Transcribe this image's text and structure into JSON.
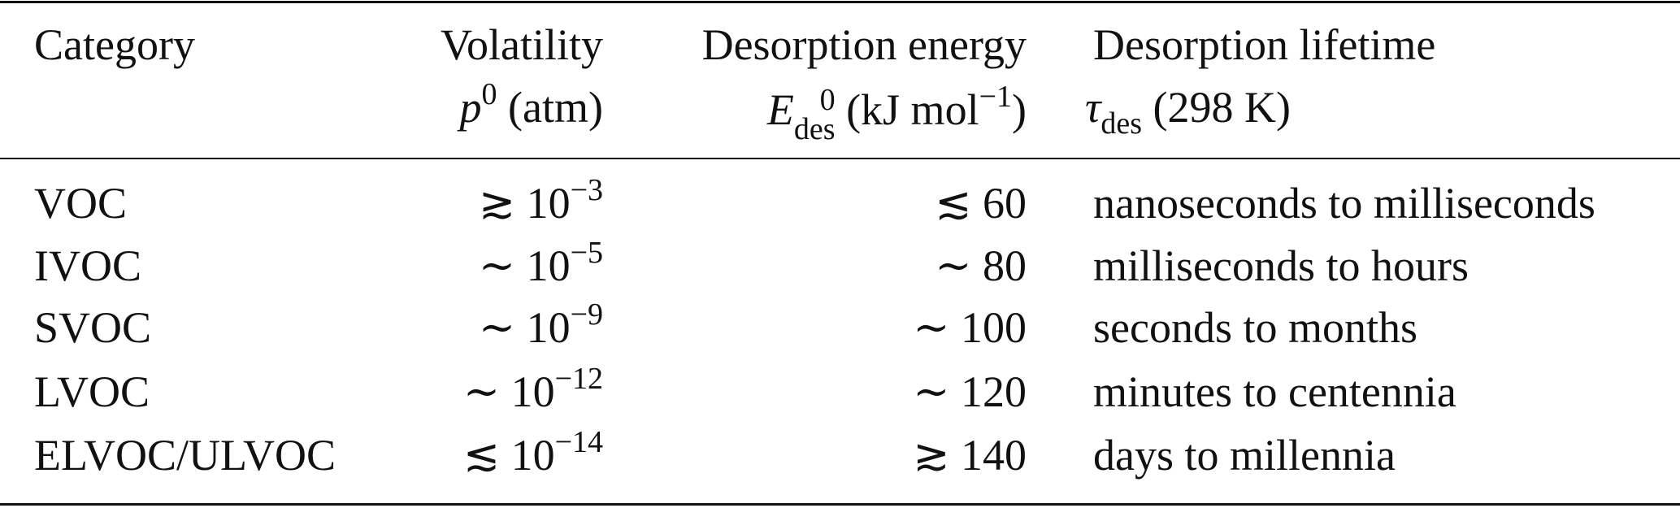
{
  "table": {
    "header": {
      "category": "Category",
      "volatility": {
        "title": "Volatility",
        "symbol": "p",
        "superscript": "0",
        "unit": "(atm)"
      },
      "energy": {
        "title": "Desorption energy",
        "symbol": "E",
        "superscript": "0",
        "subscript": "des",
        "unit": "(kJ mol",
        "unit_exponent": "−1",
        "unit_close": ")"
      },
      "lifetime": {
        "title": "Desorption lifetime",
        "symbol": "τ",
        "subscript": "des",
        "unit": "(298 K)"
      }
    },
    "rows": [
      {
        "category": "VOC",
        "volatility": {
          "relation": "≳",
          "base": "10",
          "exponent": "−3"
        },
        "energy": {
          "relation": "≲",
          "value": 60
        },
        "lifetime": "nanoseconds to milliseconds"
      },
      {
        "category": "IVOC",
        "volatility": {
          "relation": "∼",
          "base": "10",
          "exponent": "−5"
        },
        "energy": {
          "relation": "∼",
          "value": 80
        },
        "lifetime": "milliseconds to hours"
      },
      {
        "category": "SVOC",
        "volatility": {
          "relation": "∼",
          "base": "10",
          "exponent": "−9"
        },
        "energy": {
          "relation": "∼",
          "value": 100
        },
        "lifetime": "seconds to months"
      },
      {
        "category": "LVOC",
        "volatility": {
          "relation": "∼",
          "base": "10",
          "exponent": "−12"
        },
        "energy": {
          "relation": "∼",
          "value": 120
        },
        "lifetime": "minutes to centennia"
      },
      {
        "category": "ELVOC/ULVOC",
        "volatility": {
          "relation": "≲",
          "base": "10",
          "exponent": "−14"
        },
        "energy": {
          "relation": "≳",
          "value": 140
        },
        "lifetime": "days to millennia"
      }
    ]
  }
}
